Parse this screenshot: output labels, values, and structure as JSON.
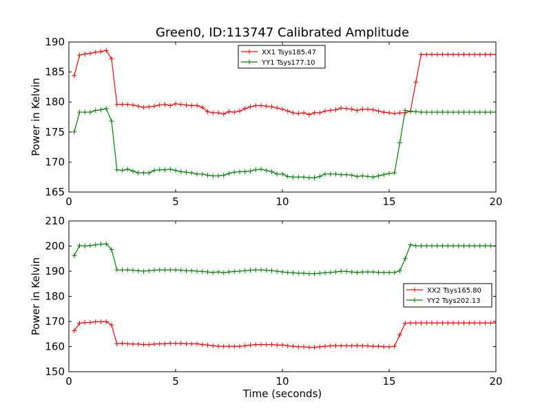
{
  "figure_title": "Green0, ID:113747 Calibrated Amplitude",
  "colors": {
    "red": "#ff0000",
    "green": "#008000"
  },
  "chart_data": [
    {
      "type": "line",
      "title": "Green0, ID:113747 Calibrated Amplitude",
      "xlabel": "",
      "ylabel": "Power in Kelvin",
      "xlim": [
        0,
        20
      ],
      "ylim": [
        165,
        190
      ],
      "xticks": [
        "0",
        "5",
        "10",
        "15",
        "20"
      ],
      "yticks": [
        "165",
        "170",
        "175",
        "180",
        "185",
        "190"
      ],
      "legend_position": "top-center",
      "x": [
        0.25,
        0.5,
        0.75,
        1.0,
        1.25,
        1.5,
        1.75,
        2.0,
        2.25,
        2.5,
        2.75,
        3.0,
        3.25,
        3.5,
        3.75,
        4.0,
        4.25,
        4.5,
        4.75,
        5.0,
        5.25,
        5.5,
        5.75,
        6.0,
        6.25,
        6.5,
        6.75,
        7.0,
        7.25,
        7.5,
        7.75,
        8.0,
        8.25,
        8.5,
        8.75,
        9.0,
        9.25,
        9.5,
        9.75,
        10.0,
        10.25,
        10.5,
        10.75,
        11.0,
        11.25,
        11.5,
        11.75,
        12.0,
        12.25,
        12.5,
        12.75,
        13.0,
        13.25,
        13.5,
        13.75,
        14.0,
        14.25,
        14.5,
        14.75,
        15.0,
        15.25,
        15.5,
        15.75,
        16.0,
        16.25,
        16.5,
        16.75,
        17.0,
        17.25,
        17.5,
        17.75,
        18.0,
        18.25,
        18.5,
        18.75,
        19.0,
        19.25,
        19.5,
        19.75,
        20.0
      ],
      "series": [
        {
          "name": "XX1 Tsys185.47",
          "color": "#ff0000",
          "values": [
            184.4,
            187.8,
            188.0,
            188.1,
            188.3,
            188.4,
            188.6,
            187.2,
            179.6,
            179.6,
            179.6,
            179.5,
            179.3,
            179.1,
            179.2,
            179.3,
            179.5,
            179.6,
            179.4,
            179.7,
            179.6,
            179.5,
            179.4,
            179.4,
            179.1,
            178.4,
            178.2,
            178.2,
            178.0,
            178.4,
            178.3,
            178.5,
            178.9,
            179.2,
            179.4,
            179.4,
            179.3,
            179.2,
            179.0,
            178.8,
            178.5,
            178.2,
            178.1,
            178.2,
            177.9,
            178.2,
            178.2,
            178.5,
            178.6,
            178.7,
            179.0,
            178.9,
            178.8,
            178.6,
            178.8,
            178.8,
            178.7,
            178.5,
            178.3,
            178.2,
            178.1,
            178.2,
            178.2,
            178.5,
            183.3,
            187.9,
            187.9,
            187.9,
            187.9,
            187.9,
            187.9,
            187.9,
            187.9,
            187.9,
            187.9,
            187.9,
            187.9,
            187.9,
            187.9,
            187.9
          ]
        },
        {
          "name": "YY1 Tsys177.10",
          "color": "#008000",
          "values": [
            175.0,
            178.3,
            178.3,
            178.3,
            178.6,
            178.7,
            178.9,
            176.8,
            168.7,
            168.6,
            168.8,
            168.5,
            168.2,
            168.2,
            168.2,
            168.6,
            168.7,
            168.7,
            168.8,
            168.6,
            168.4,
            168.3,
            168.2,
            168.0,
            168.0,
            167.8,
            167.7,
            167.7,
            167.8,
            168.1,
            168.3,
            168.4,
            168.4,
            168.5,
            168.7,
            168.8,
            168.6,
            168.4,
            168.0,
            168.0,
            167.6,
            167.5,
            167.5,
            167.5,
            167.4,
            167.4,
            167.6,
            168.0,
            168.0,
            168.0,
            167.9,
            167.9,
            167.8,
            167.6,
            167.7,
            167.6,
            167.5,
            167.7,
            167.9,
            168.1,
            168.2,
            173.2,
            178.6,
            178.4,
            178.4,
            178.3,
            178.3,
            178.3,
            178.3,
            178.3,
            178.3,
            178.3,
            178.3,
            178.3,
            178.3,
            178.3,
            178.3,
            178.3,
            178.3,
            178.3
          ]
        }
      ]
    },
    {
      "type": "line",
      "title": "",
      "xlabel": "Time (seconds)",
      "ylabel": "Power in Kelvin",
      "xlim": [
        0,
        20
      ],
      "ylim": [
        150,
        210
      ],
      "xticks": [
        "0",
        "5",
        "10",
        "15",
        "20"
      ],
      "yticks": [
        "150",
        "160",
        "170",
        "180",
        "190",
        "200",
        "210"
      ],
      "legend_position": "center-right",
      "x": [
        0.25,
        0.5,
        0.75,
        1.0,
        1.25,
        1.5,
        1.75,
        2.0,
        2.25,
        2.5,
        2.75,
        3.0,
        3.25,
        3.5,
        3.75,
        4.0,
        4.25,
        4.5,
        4.75,
        5.0,
        5.25,
        5.5,
        5.75,
        6.0,
        6.25,
        6.5,
        6.75,
        7.0,
        7.25,
        7.5,
        7.75,
        8.0,
        8.25,
        8.5,
        8.75,
        9.0,
        9.25,
        9.5,
        9.75,
        10.0,
        10.25,
        10.5,
        10.75,
        11.0,
        11.25,
        11.5,
        11.75,
        12.0,
        12.25,
        12.5,
        12.75,
        13.0,
        13.25,
        13.5,
        13.75,
        14.0,
        14.25,
        14.5,
        14.75,
        15.0,
        15.25,
        15.5,
        15.75,
        16.0,
        16.25,
        16.5,
        16.75,
        17.0,
        17.25,
        17.5,
        17.75,
        18.0,
        18.25,
        18.5,
        18.75,
        19.0,
        19.25,
        19.5,
        19.75,
        20.0
      ],
      "series": [
        {
          "name": "XX2 Tsys165.80",
          "color": "#ff0000",
          "values": [
            166.3,
            169.3,
            169.6,
            169.6,
            169.9,
            169.9,
            169.9,
            168.6,
            161.1,
            161.3,
            161.1,
            161.0,
            161.0,
            160.8,
            160.8,
            161.0,
            161.1,
            161.1,
            161.3,
            161.3,
            161.3,
            161.1,
            161.1,
            161.1,
            160.8,
            160.6,
            160.3,
            160.1,
            160.1,
            160.1,
            160.1,
            160.1,
            160.3,
            160.6,
            160.8,
            160.8,
            160.8,
            160.8,
            160.6,
            160.6,
            160.3,
            160.1,
            159.9,
            159.9,
            159.7,
            159.7,
            159.9,
            160.1,
            160.3,
            160.3,
            160.3,
            160.3,
            160.3,
            160.3,
            160.3,
            160.3,
            160.1,
            160.1,
            159.9,
            159.9,
            160.1,
            164.7,
            169.3,
            169.4,
            169.4,
            169.4,
            169.4,
            169.4,
            169.4,
            169.4,
            169.4,
            169.4,
            169.4,
            169.4,
            169.4,
            169.4,
            169.4,
            169.4,
            169.4,
            169.4
          ]
        },
        {
          "name": "YY2 Tsys202.13",
          "color": "#008000",
          "values": [
            196.2,
            200.2,
            200.0,
            200.2,
            200.5,
            200.7,
            200.9,
            198.6,
            190.5,
            190.5,
            190.5,
            190.4,
            190.2,
            190.0,
            190.2,
            190.4,
            190.5,
            190.5,
            190.5,
            190.5,
            190.4,
            190.2,
            190.2,
            190.0,
            189.9,
            189.7,
            189.5,
            189.7,
            189.4,
            189.7,
            189.9,
            190.0,
            190.2,
            190.4,
            190.5,
            190.5,
            190.4,
            190.2,
            190.0,
            189.7,
            189.5,
            189.4,
            189.2,
            189.2,
            189.0,
            189.0,
            189.2,
            189.4,
            189.5,
            189.7,
            190.0,
            189.9,
            189.7,
            189.5,
            189.7,
            189.7,
            189.7,
            189.5,
            189.5,
            189.5,
            189.5,
            190.2,
            195.0,
            200.5,
            200.1,
            200.1,
            200.1,
            200.1,
            200.1,
            200.1,
            200.1,
            200.1,
            200.1,
            200.1,
            200.1,
            200.1,
            200.1,
            200.1,
            200.1,
            200.1
          ]
        }
      ]
    }
  ]
}
